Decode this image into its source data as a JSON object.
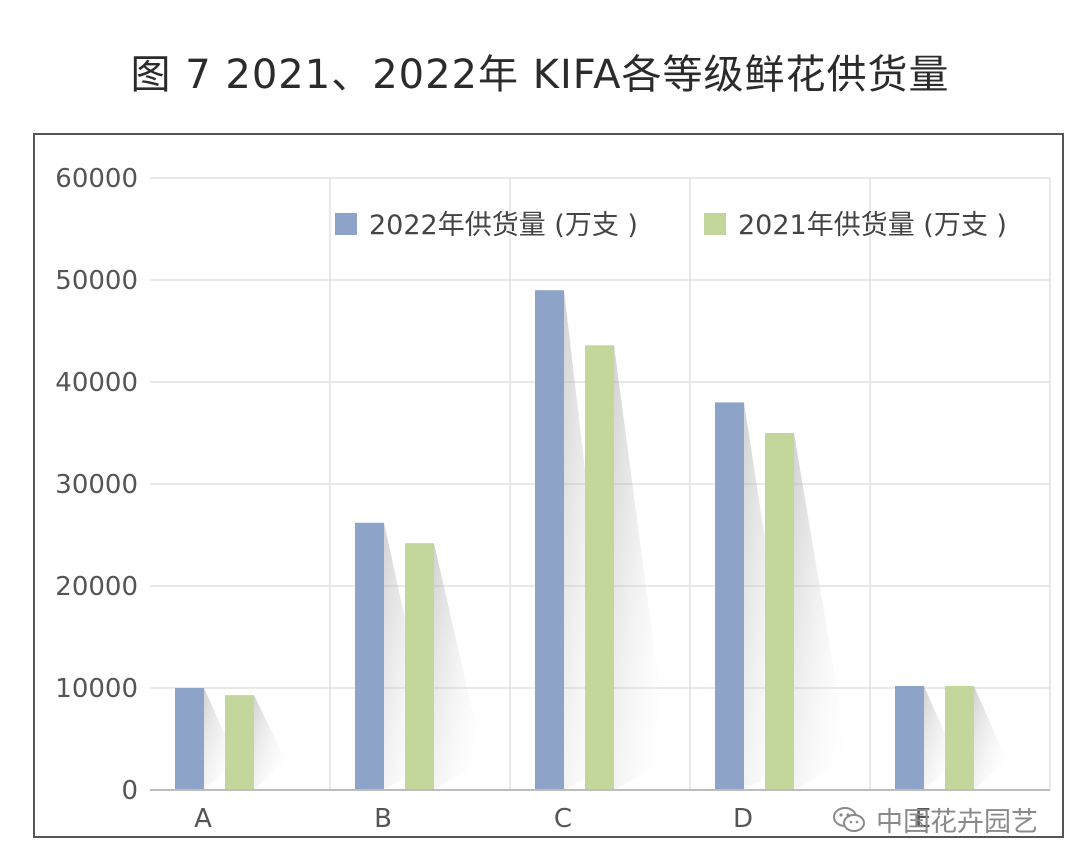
{
  "page": {
    "title": "图 7 2021、2022年 KIFA各等级鲜花供货量",
    "watermark": "中国花卉园艺"
  },
  "colors": {
    "series_2022": "#8ea3c8",
    "series_2021": "#c3d69b",
    "grid": "#e2e2e2",
    "axis": "#bdbdbd"
  },
  "chart_data": {
    "type": "bar",
    "title": "图 7 2021、2022年 KIFA各等级鲜花供货量",
    "categories": [
      "A",
      "B",
      "C",
      "D",
      "E"
    ],
    "series": [
      {
        "name": "2022年供货量 (万支 )",
        "values": [
          10000,
          26200,
          49000,
          38000,
          10200
        ]
      },
      {
        "name": "2021年供货量 (万支 )",
        "values": [
          9300,
          24200,
          43600,
          35000,
          10200
        ]
      }
    ],
    "yticks": [
      0,
      10000,
      20000,
      30000,
      40000,
      50000,
      60000
    ],
    "ylim": [
      0,
      60000
    ],
    "xlabel": "",
    "ylabel": "",
    "grid": true,
    "legend_position": "top-right"
  }
}
